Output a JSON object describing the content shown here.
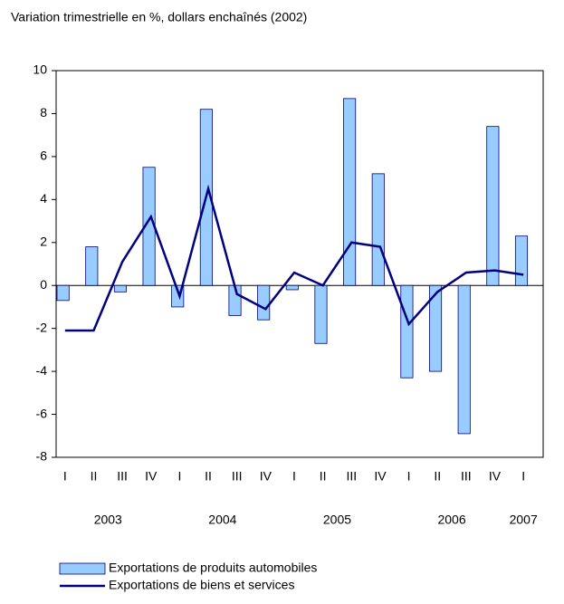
{
  "chart_data": {
    "type": "bar-line",
    "title": "Variation trimestrielle en %, dollars enchaînés (2002)",
    "categories": [
      "I",
      "II",
      "III",
      "IV",
      "I",
      "II",
      "III",
      "IV",
      "I",
      "II",
      "III",
      "IV",
      "I",
      "II",
      "III",
      "IV",
      "I"
    ],
    "years": [
      "2003",
      "2004",
      "2005",
      "2006",
      "2007"
    ],
    "series": [
      {
        "name": "Exportations de produits automobiles",
        "type": "bar",
        "color": "#99ccff",
        "values": [
          -0.7,
          1.8,
          -0.3,
          5.5,
          -1.0,
          8.2,
          -1.4,
          -1.6,
          -0.2,
          -2.7,
          8.7,
          5.2,
          -4.3,
          -4.0,
          -6.9,
          7.4,
          2.3
        ]
      },
      {
        "name": "Exportations de biens et services",
        "type": "line",
        "color": "#000080",
        "values": [
          -2.1,
          -2.1,
          1.1,
          3.2,
          -0.5,
          4.5,
          -0.4,
          -1.1,
          0.6,
          0.0,
          2.0,
          1.8,
          -1.8,
          -0.3,
          0.6,
          0.7,
          0.5
        ]
      }
    ],
    "ylim": [
      -8,
      10
    ],
    "yticks": [
      -8,
      -6,
      -4,
      -2,
      0,
      2,
      4,
      6,
      8,
      10
    ],
    "grid": false
  }
}
